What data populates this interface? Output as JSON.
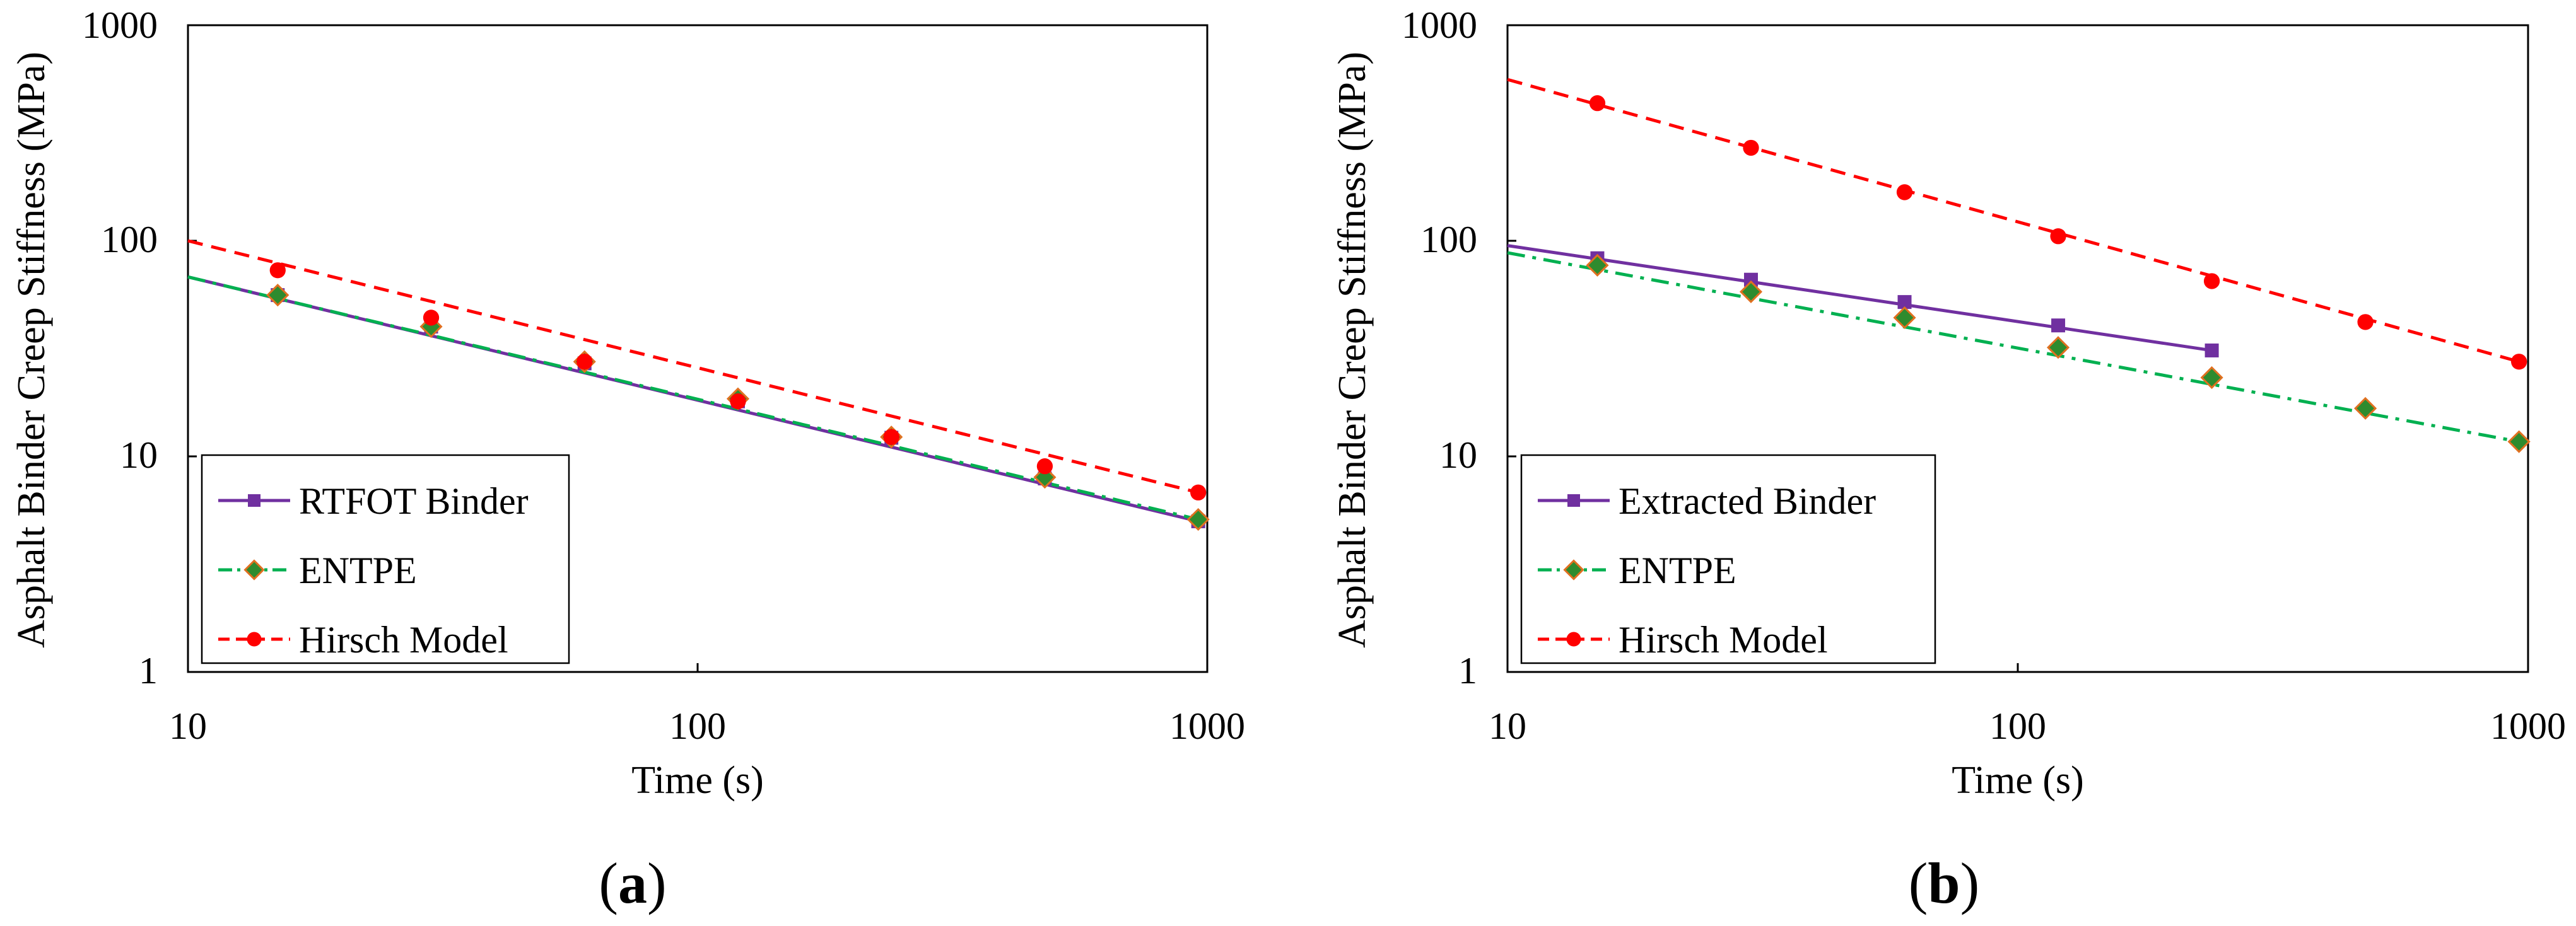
{
  "chart_data": [
    {
      "type": "line",
      "panel_label": "a",
      "xlabel": "Time (s)",
      "ylabel": "Asphalt Binder Creep Stiffness (MPa)",
      "xscale": "log",
      "yscale": "log",
      "xlim": [
        10,
        1000
      ],
      "ylim": [
        1,
        1000
      ],
      "xticks": [
        "10",
        "100",
        "1000"
      ],
      "yticks": [
        "1",
        "10",
        "100",
        "1000"
      ],
      "legend_position": "bottom-left",
      "series": [
        {
          "name": "RTFOT Binder",
          "color": "#7030A0",
          "line_style": "solid",
          "marker": "square",
          "marker_fill": "#7030A0",
          "line_x": [
            10,
            960
          ],
          "line_y": [
            68,
            5.0
          ],
          "x": [
            15,
            30,
            60,
            120,
            240,
            480,
            960
          ],
          "y": [
            56,
            40,
            27,
            18,
            12.2,
            7.9,
            5.0
          ]
        },
        {
          "name": "ENTPE",
          "color": "#00B050",
          "line_style": "dashdot",
          "marker": "diamond",
          "marker_fill": "#2E8B2E",
          "marker_edge": "#E07020",
          "line_x": [
            10,
            960
          ],
          "line_y": [
            68,
            5.1
          ],
          "x": [
            15,
            30,
            60,
            120,
            240,
            480,
            960
          ],
          "y": [
            56,
            40,
            27.5,
            18.5,
            12.3,
            8.0,
            5.1
          ]
        },
        {
          "name": "Hirsch Model",
          "color": "#FF0000",
          "line_style": "dashed",
          "marker": "circle",
          "marker_fill": "#FF0000",
          "line_x": [
            10,
            960
          ],
          "line_y": [
            100,
            6.8
          ],
          "x": [
            15,
            30,
            60,
            120,
            240,
            480,
            960
          ],
          "y": [
            73,
            44,
            27.5,
            18,
            12.3,
            9.0,
            6.8
          ]
        }
      ]
    },
    {
      "type": "line",
      "panel_label": "b",
      "xlabel": "Time (s)",
      "ylabel": "Asphalt Binder Creep Stiffness (MPa)",
      "xscale": "log",
      "yscale": "log",
      "xlim": [
        10,
        1000
      ],
      "ylim": [
        1,
        1000
      ],
      "xticks": [
        "10",
        "100",
        "1000"
      ],
      "yticks": [
        "1",
        "10",
        "100",
        "1000"
      ],
      "legend_position": "bottom-left",
      "series": [
        {
          "name": "Extracted Binder",
          "color": "#7030A0",
          "line_style": "solid",
          "marker": "square",
          "marker_fill": "#7030A0",
          "line_x": [
            10,
            240
          ],
          "line_y": [
            95,
            31
          ],
          "x": [
            15,
            30,
            60,
            120,
            240
          ],
          "y": [
            83,
            66,
            52,
            40.5,
            31
          ]
        },
        {
          "name": "ENTPE",
          "color": "#00B050",
          "line_style": "dashdot",
          "marker": "diamond",
          "marker_fill": "#2E8B2E",
          "marker_edge": "#E07020",
          "line_x": [
            10,
            960
          ],
          "line_y": [
            88,
            11.7
          ],
          "x": [
            15,
            30,
            60,
            120,
            240,
            480,
            960
          ],
          "y": [
            77,
            58,
            44,
            32,
            23.2,
            16.7,
            11.7
          ]
        },
        {
          "name": "Hirsch Model",
          "color": "#FF0000",
          "line_style": "dashed",
          "marker": "circle",
          "marker_fill": "#FF0000",
          "line_x": [
            10,
            960
          ],
          "line_y": [
            560,
            27.5
          ],
          "x": [
            15,
            30,
            60,
            120,
            240,
            480,
            960
          ],
          "y": [
            435,
            270,
            168,
            105,
            65,
            42,
            27.5
          ]
        }
      ]
    }
  ]
}
